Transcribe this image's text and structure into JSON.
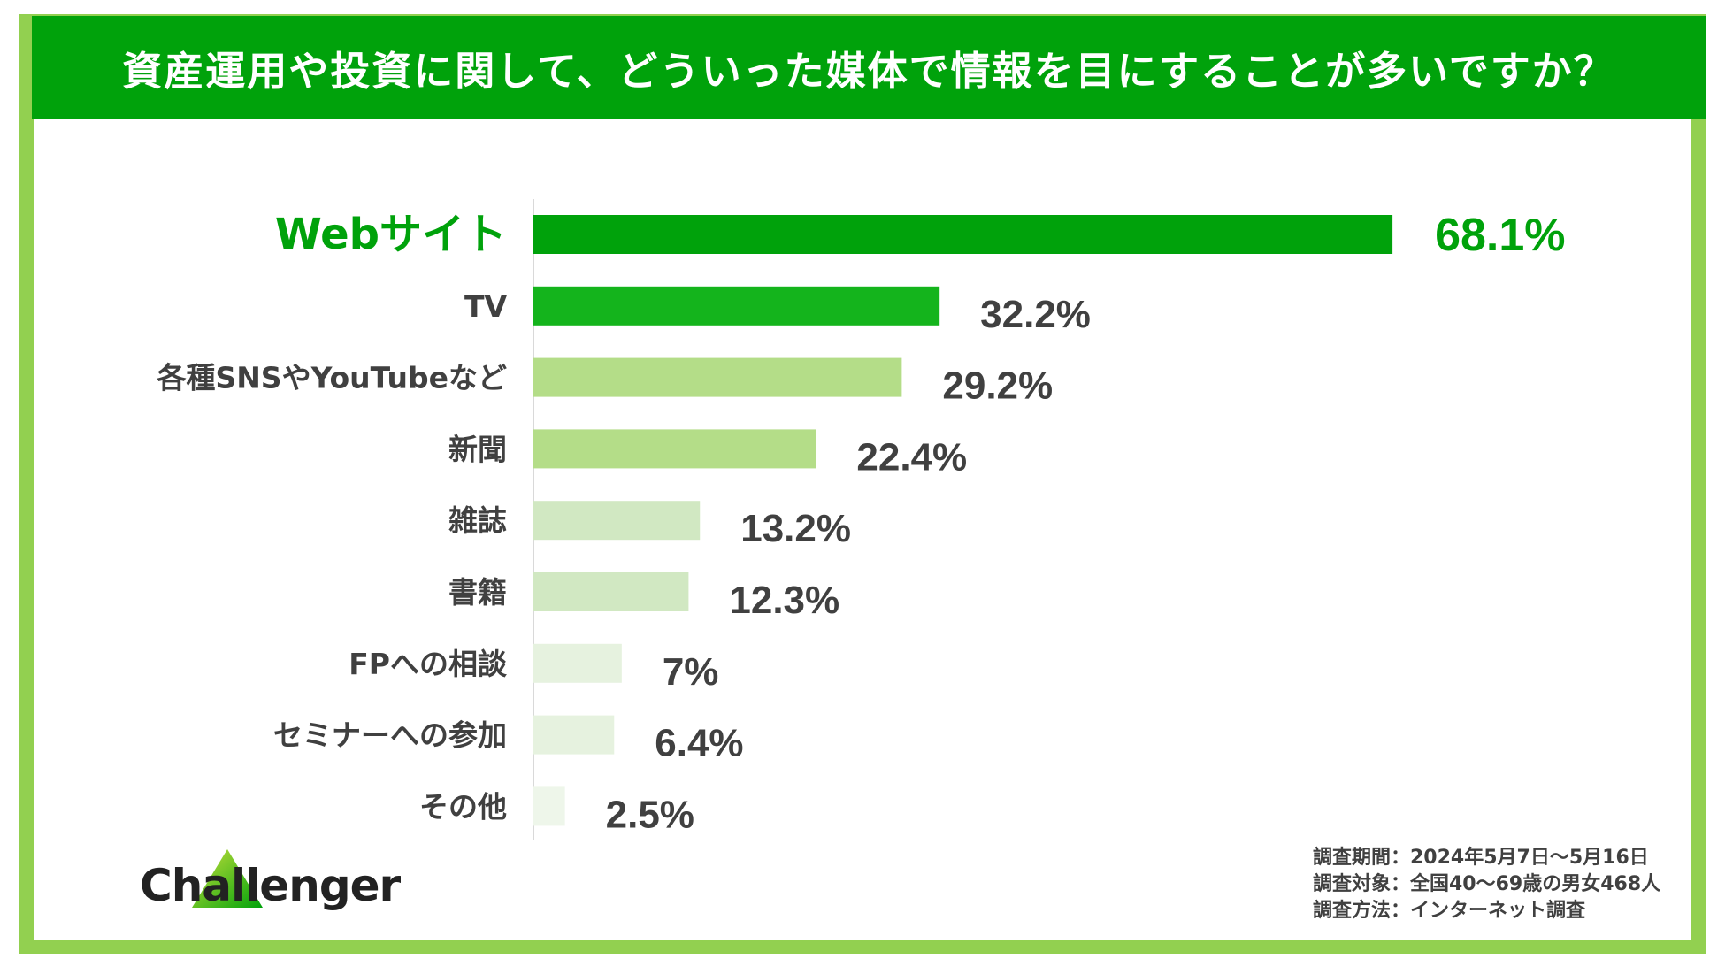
{
  "title": "資産運用や投資に関して、どういった媒体で情報を目にすることが多いですか？",
  "chart_data": {
    "type": "bar",
    "orientation": "horizontal",
    "title": "資産運用や投資に関して、どういった媒体で情報を目にすることが多いですか？",
    "categories": [
      "Webサイト",
      "TV",
      "各種SNSやYouTubeなど",
      "新聞",
      "雑誌",
      "書籍",
      "FPへの相談",
      "セミナーへの参加",
      "その他"
    ],
    "values": [
      68.1,
      32.2,
      29.2,
      22.4,
      13.2,
      12.3,
      7,
      6.4,
      2.5
    ],
    "value_labels": [
      "68.1%",
      "32.2%",
      "29.2%",
      "22.4%",
      "13.2%",
      "12.3%",
      "7%",
      "6.4%",
      "2.5%"
    ],
    "bar_colors": [
      "#00a20b",
      "#14b41c",
      "#b4dd88",
      "#b4dd88",
      "#d1e8c2",
      "#d1e8c2",
      "#e6f2df",
      "#e6f2df",
      "#eef6ea"
    ],
    "highlight_color": "#00a20b",
    "text_color": "#404040",
    "xlim": [
      0,
      100
    ],
    "grid": false,
    "legend": "none"
  },
  "logo": {
    "text": "Challenger"
  },
  "notes": [
    "調査期間：2024年5月7日〜5月16日",
    "調査対象：全国40〜69歳の男女468人",
    "調査方法：インターネット調査"
  ],
  "colors": {
    "title_bg": "#00a20b",
    "frame": "#92d050"
  }
}
